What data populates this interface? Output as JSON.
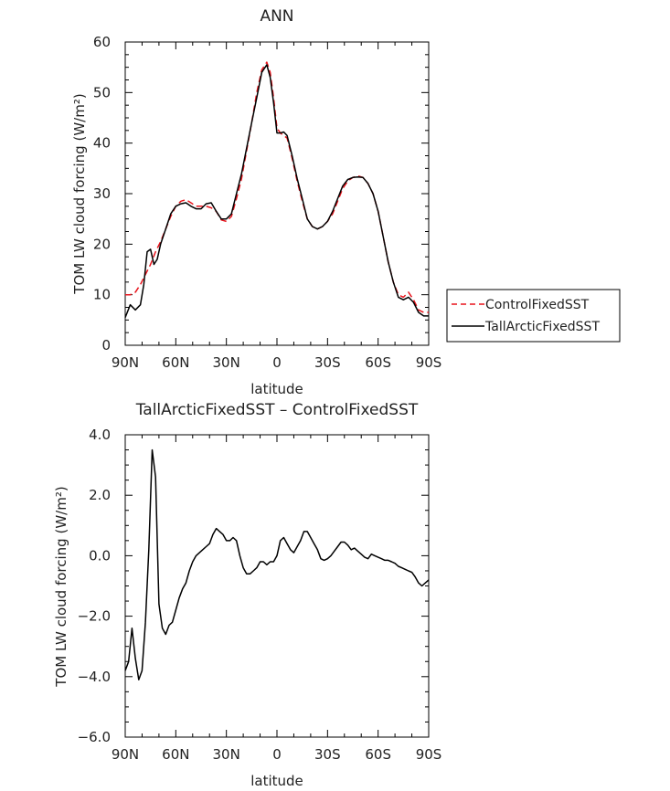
{
  "chart_data": [
    {
      "type": "line",
      "title": "ANN",
      "xlabel": "latitude",
      "ylabel": "TOM LW cloud forcing (W/m²)",
      "xlim": [
        90,
        -90
      ],
      "ylim": [
        0,
        60
      ],
      "xticks": [
        {
          "value": 90,
          "label": "90N"
        },
        {
          "value": 60,
          "label": "60N"
        },
        {
          "value": 30,
          "label": "30N"
        },
        {
          "value": 0,
          "label": "0"
        },
        {
          "value": -30,
          "label": "30S"
        },
        {
          "value": -60,
          "label": "60S"
        },
        {
          "value": -90,
          "label": "90S"
        }
      ],
      "yticks": [
        {
          "value": 0,
          "label": "0"
        },
        {
          "value": 10,
          "label": "10"
        },
        {
          "value": 20,
          "label": "20"
        },
        {
          "value": 30,
          "label": "30"
        },
        {
          "value": 40,
          "label": "40"
        },
        {
          "value": 50,
          "label": "50"
        },
        {
          "value": 60,
          "label": "60"
        }
      ],
      "legend_position": "right",
      "series": [
        {
          "name": "ControlFixedSST",
          "color": "#e8141c",
          "dash": "dashed",
          "x": [
            90,
            87,
            84,
            81,
            78,
            75,
            72,
            69,
            66,
            63,
            60,
            57,
            54,
            51,
            48,
            45,
            42,
            39,
            36,
            33,
            30,
            27,
            24,
            21,
            18,
            15,
            12,
            9,
            6,
            4,
            2,
            0,
            -2,
            -4,
            -6,
            -9,
            -12,
            -15,
            -18,
            -21,
            -24,
            -27,
            -30,
            -33,
            -36,
            -39,
            -42,
            -45,
            -48,
            -51,
            -54,
            -57,
            -60,
            -63,
            -66,
            -69,
            -72,
            -75,
            -78,
            -81,
            -84,
            -87,
            -90
          ],
          "values": [
            10,
            10,
            10.5,
            12,
            14,
            16,
            18.5,
            20.5,
            23,
            25.5,
            27.5,
            28.5,
            28.8,
            28.2,
            27.5,
            27.5,
            27.5,
            27.2,
            26.5,
            24.8,
            24.5,
            25.5,
            29,
            33,
            38.5,
            44,
            50,
            54.5,
            56,
            54,
            49,
            43,
            42,
            41.5,
            41,
            37,
            32.5,
            28.5,
            25,
            23.5,
            23,
            23.5,
            24.5,
            26,
            28.5,
            31,
            32.5,
            33.2,
            33.5,
            33.2,
            32,
            30,
            26.5,
            21.5,
            16.5,
            12.5,
            10,
            9.5,
            10.5,
            9,
            7,
            6.5,
            6.5
          ]
        },
        {
          "name": "TallArcticFixedSST",
          "color": "#000000",
          "dash": "solid",
          "x": [
            90,
            87,
            84,
            81,
            79,
            77,
            75,
            73,
            71,
            69,
            66,
            63,
            60,
            57,
            54,
            51,
            48,
            45,
            42,
            39,
            36,
            33,
            30,
            27,
            24,
            21,
            18,
            15,
            12,
            9,
            6,
            4,
            2,
            0,
            -2,
            -4,
            -6,
            -9,
            -12,
            -15,
            -18,
            -21,
            -24,
            -27,
            -30,
            -33,
            -36,
            -39,
            -42,
            -45,
            -48,
            -51,
            -54,
            -57,
            -60,
            -63,
            -66,
            -69,
            -72,
            -75,
            -78,
            -81,
            -84,
            -87,
            -90
          ],
          "values": [
            5.5,
            8,
            7,
            8,
            12,
            18.5,
            19,
            16,
            17,
            20,
            23,
            26,
            27.5,
            28,
            28.2,
            27.5,
            27,
            27,
            28,
            28.2,
            26.5,
            25,
            25,
            26,
            30,
            34,
            39,
            44,
            49,
            54,
            55.5,
            53,
            48,
            42,
            42,
            42.2,
            41.5,
            37.5,
            33,
            29,
            25,
            23.5,
            23,
            23.5,
            24.5,
            26.5,
            29,
            31.5,
            32.8,
            33.2,
            33.3,
            33.2,
            32,
            30,
            26.5,
            21.5,
            16.5,
            12.5,
            9.5,
            9,
            9.5,
            8.5,
            6.5,
            5.8,
            5.8
          ]
        }
      ]
    },
    {
      "type": "line",
      "title": "TallArcticFixedSST – ControlFixedSST",
      "xlabel": "latitude",
      "ylabel": "TOM LW cloud forcing (W/m²)",
      "xlim": [
        90,
        -90
      ],
      "ylim": [
        -6,
        4
      ],
      "xticks": [
        {
          "value": 90,
          "label": "90N"
        },
        {
          "value": 60,
          "label": "60N"
        },
        {
          "value": 30,
          "label": "30N"
        },
        {
          "value": 0,
          "label": "0"
        },
        {
          "value": -30,
          "label": "30S"
        },
        {
          "value": -60,
          "label": "60S"
        },
        {
          "value": -90,
          "label": "90S"
        }
      ],
      "yticks": [
        {
          "value": -6,
          "label": "−6.0"
        },
        {
          "value": -4,
          "label": "−4.0"
        },
        {
          "value": -2,
          "label": "−2.0"
        },
        {
          "value": 0,
          "label": "0.0"
        },
        {
          "value": 2,
          "label": "2.0"
        },
        {
          "value": 4,
          "label": "4.0"
        }
      ],
      "series": [
        {
          "color": "#000000",
          "dash": "solid",
          "x": [
            90,
            88,
            86,
            84,
            82,
            80,
            78,
            76,
            74,
            72,
            70,
            68,
            66,
            64,
            62,
            60,
            58,
            56,
            54,
            52,
            50,
            48,
            46,
            44,
            42,
            40,
            38,
            36,
            34,
            32,
            30,
            28,
            26,
            24,
            22,
            20,
            18,
            16,
            14,
            12,
            10,
            8,
            6,
            4,
            2,
            0,
            -2,
            -4,
            -6,
            -8,
            -10,
            -12,
            -14,
            -16,
            -18,
            -20,
            -22,
            -24,
            -26,
            -28,
            -30,
            -32,
            -34,
            -36,
            -38,
            -40,
            -42,
            -44,
            -46,
            -48,
            -50,
            -52,
            -54,
            -56,
            -58,
            -60,
            -62,
            -64,
            -66,
            -68,
            -70,
            -72,
            -74,
            -76,
            -78,
            -80,
            -82,
            -84,
            -86,
            -88,
            -90
          ],
          "values": [
            -3.8,
            -3.5,
            -2.4,
            -3.4,
            -4.1,
            -3.8,
            -2.2,
            0.2,
            3.5,
            2.6,
            -1.6,
            -2.4,
            -2.6,
            -2.3,
            -2.2,
            -1.8,
            -1.4,
            -1.1,
            -0.9,
            -0.5,
            -0.2,
            0.0,
            0.1,
            0.2,
            0.3,
            0.4,
            0.7,
            0.9,
            0.8,
            0.7,
            0.5,
            0.5,
            0.6,
            0.5,
            0.0,
            -0.4,
            -0.6,
            -0.6,
            -0.5,
            -0.4,
            -0.2,
            -0.2,
            -0.3,
            -0.2,
            -0.2,
            0.0,
            0.5,
            0.6,
            0.4,
            0.2,
            0.1,
            0.3,
            0.5,
            0.8,
            0.8,
            0.6,
            0.4,
            0.2,
            -0.1,
            -0.15,
            -0.1,
            0.0,
            0.15,
            0.3,
            0.45,
            0.45,
            0.35,
            0.2,
            0.25,
            0.15,
            0.05,
            -0.05,
            -0.1,
            0.05,
            0.0,
            -0.05,
            -0.1,
            -0.15,
            -0.15,
            -0.2,
            -0.25,
            -0.35,
            -0.4,
            -0.45,
            -0.5,
            -0.55,
            -0.7,
            -0.9,
            -1.0,
            -0.9,
            -0.8
          ]
        }
      ]
    }
  ]
}
